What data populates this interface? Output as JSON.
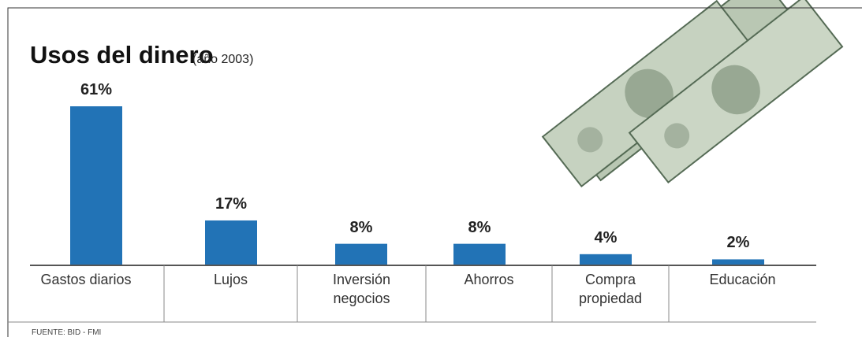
{
  "chart_data": {
    "type": "bar",
    "title": "Usos del dinero",
    "subtitle": "(año 2003)",
    "categories": [
      "Gastos diarios",
      "Lujos",
      "Inversión\nnegocios",
      "Ahorros",
      "Compra\npropiedad",
      "Educación"
    ],
    "values": [
      61,
      17,
      8,
      8,
      4,
      2
    ],
    "value_labels": [
      "61%",
      "17%",
      "8%",
      "8%",
      "4%",
      "2%"
    ],
    "color": "#2273b6",
    "source": "FUENTE: BID - FMI"
  }
}
